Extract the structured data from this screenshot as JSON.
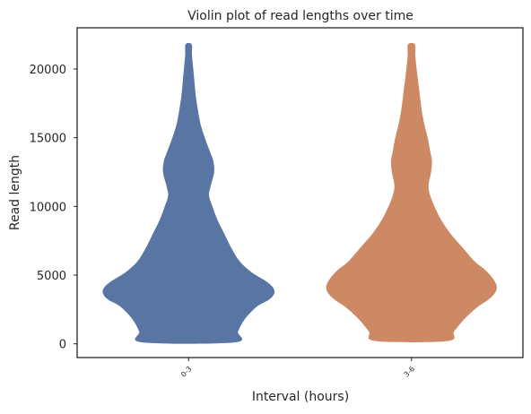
{
  "chart_data": {
    "type": "violin",
    "title": "Violin plot of read lengths over time",
    "xlabel": "Interval (hours)",
    "ylabel": "Read length",
    "categories": [
      "0-3",
      "3-6"
    ],
    "ylim": [
      -1000,
      23000
    ],
    "yticks": [
      0,
      5000,
      10000,
      15000,
      20000
    ],
    "ytick_labels": [
      "0",
      "5000",
      "10000",
      "15000",
      "20000"
    ],
    "grid": false,
    "colors": [
      "#5975a4",
      "#cc8963"
    ],
    "violins": [
      {
        "category": "0-3",
        "min": 100,
        "max": 21800,
        "profile_y": [
          100,
          900,
          1800,
          2700,
          3200,
          3600,
          4000,
          4500,
          5200,
          6000,
          7000,
          8000,
          9000,
          10000,
          10800,
          11500,
          12500,
          13300,
          14000,
          15000,
          16000,
          17000,
          18000,
          19000,
          20000,
          21000,
          21800
        ],
        "profile_w": [
          0.54,
          0.58,
          0.66,
          0.8,
          0.94,
          1.0,
          1.0,
          0.92,
          0.74,
          0.6,
          0.5,
          0.42,
          0.34,
          0.28,
          0.24,
          0.26,
          0.3,
          0.29,
          0.25,
          0.19,
          0.14,
          0.11,
          0.085,
          0.07,
          0.055,
          0.04,
          0.035
        ]
      },
      {
        "category": "3-6",
        "min": 200,
        "max": 21800,
        "profile_y": [
          200,
          900,
          1800,
          2700,
          3200,
          3700,
          4200,
          4800,
          5400,
          6000,
          7000,
          8000,
          9000,
          10000,
          10800,
          11500,
          12500,
          13300,
          14000,
          15000,
          16000,
          17000,
          18000,
          19000,
          20000,
          21000,
          21800
        ],
        "profile_w": [
          0.42,
          0.5,
          0.62,
          0.78,
          0.9,
          0.98,
          1.0,
          0.95,
          0.86,
          0.74,
          0.6,
          0.46,
          0.35,
          0.27,
          0.22,
          0.2,
          0.23,
          0.24,
          0.22,
          0.19,
          0.15,
          0.12,
          0.1,
          0.08,
          0.06,
          0.045,
          0.04
        ]
      }
    ]
  }
}
